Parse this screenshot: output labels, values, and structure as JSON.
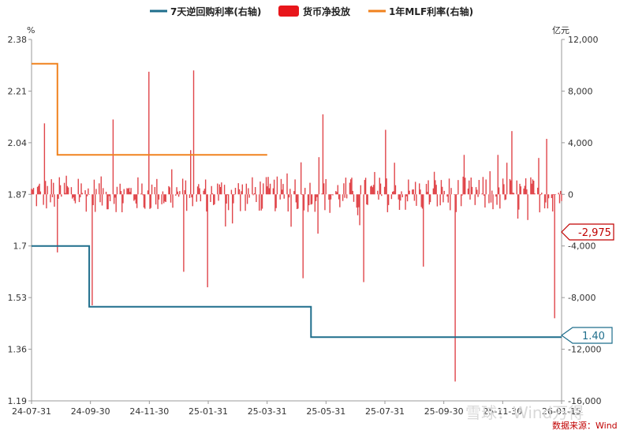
{
  "chart_data": {
    "type": "bar-line-combo",
    "legend": [
      {
        "label": "7天逆回购利率(右轴)",
        "color": "#1f6e8c",
        "marker": "line"
      },
      {
        "label": "货币净投放",
        "color": "#e8161b",
        "marker": "rect"
      },
      {
        "label": "1年MLF利率(右轴)",
        "color": "#f0821e",
        "marker": "line"
      }
    ],
    "left_axis": {
      "unit": "%",
      "ticks": [
        "2.38",
        "2.21",
        "2.04",
        "1.87",
        "1.7",
        "1.53",
        "1.36",
        "1.19"
      ],
      "range": [
        1.19,
        2.38
      ]
    },
    "right_axis": {
      "unit": "亿元",
      "ticks": [
        "12,000",
        "8,000",
        "4,000",
        "0",
        "-4,000",
        "-8,000",
        "-12,000",
        "-16,000"
      ],
      "range": [
        -16000,
        12000
      ]
    },
    "x_axis": {
      "ticks": [
        "24-07-31",
        "24-09-30",
        "24-11-30",
        "25-01-31",
        "25-03-31",
        "25-05-31",
        "25-07-31",
        "25-09-30",
        "25-11-30",
        "26-01-15"
      ],
      "start": "2024-07-31",
      "end": "2026-01-15"
    },
    "series": [
      {
        "name": "7天逆回购利率(右轴)",
        "type": "step-line",
        "color": "#1f6e8c",
        "points": [
          [
            "2024-07-31",
            1.7
          ],
          [
            "2024-09-27",
            1.7
          ],
          [
            "2024-09-27",
            1.5
          ],
          [
            "2025-05-08",
            1.5
          ],
          [
            "2025-05-08",
            1.4
          ],
          [
            "2026-01-15",
            1.4
          ]
        ]
      },
      {
        "name": "1年MLF利率(右轴)",
        "type": "step-line",
        "color": "#f0821e",
        "points": [
          [
            "2024-07-31",
            2.3
          ],
          [
            "2024-08-26",
            2.3
          ],
          [
            "2024-08-26",
            2.0
          ],
          [
            "2025-03-25",
            2.0
          ]
        ]
      },
      {
        "name": "货币净投放",
        "type": "bar",
        "color": "#e0454a",
        "highlights": [
          [
            "2024-08-13",
            5500
          ],
          [
            "2024-08-26",
            -4500
          ],
          [
            "2024-09-30",
            -8600
          ],
          [
            "2024-10-21",
            5800
          ],
          [
            "2024-11-26",
            9500
          ],
          [
            "2024-12-31",
            -6000
          ],
          [
            "2025-01-10",
            9600
          ],
          [
            "2025-01-24",
            -7200
          ],
          [
            "2025-04-30",
            -6500
          ],
          [
            "2025-05-20",
            6200
          ],
          [
            "2025-06-30",
            -6800
          ],
          [
            "2025-07-22",
            5000
          ],
          [
            "2025-08-29",
            -5600
          ],
          [
            "2025-09-30",
            -14500
          ],
          [
            "2025-11-26",
            4900
          ],
          [
            "2025-12-31",
            4300
          ],
          [
            "2026-01-08",
            -9600
          ]
        ]
      }
    ],
    "callouts": [
      {
        "value": "-2,975",
        "color": "#c00000"
      },
      {
        "value": "1.40",
        "color": "#1f6e8c"
      }
    ],
    "source": "数据来源：Wind",
    "grid": false,
    "legend_position": "top"
  },
  "watermark": "雪球：Wind万得"
}
